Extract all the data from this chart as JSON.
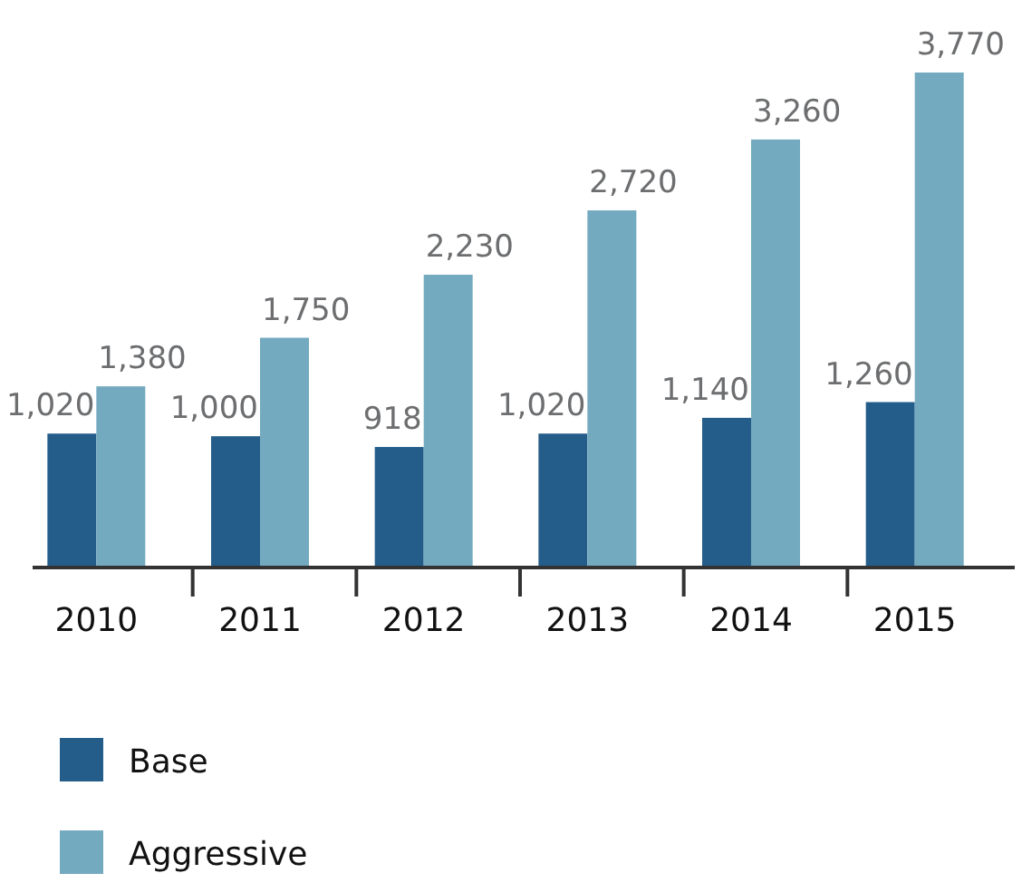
{
  "chart_data": {
    "type": "bar",
    "categories": [
      "2010",
      "2011",
      "2012",
      "2013",
      "2014",
      "2015"
    ],
    "series": [
      {
        "name": "Base",
        "color": "#255d8a",
        "values": [
          1020,
          1000,
          918,
          1020,
          1140,
          1260
        ],
        "value_labels": [
          "1,020",
          "1,000",
          "918",
          "1,020",
          "1,140",
          "1,260"
        ]
      },
      {
        "name": "Aggressive",
        "color": "#74aabf",
        "values": [
          1380,
          1750,
          2230,
          2720,
          3260,
          3770
        ],
        "value_labels": [
          "1,380",
          "1,750",
          "2,230",
          "2,720",
          "3,260",
          "3,770"
        ]
      }
    ],
    "legend": "bottom left"
  }
}
